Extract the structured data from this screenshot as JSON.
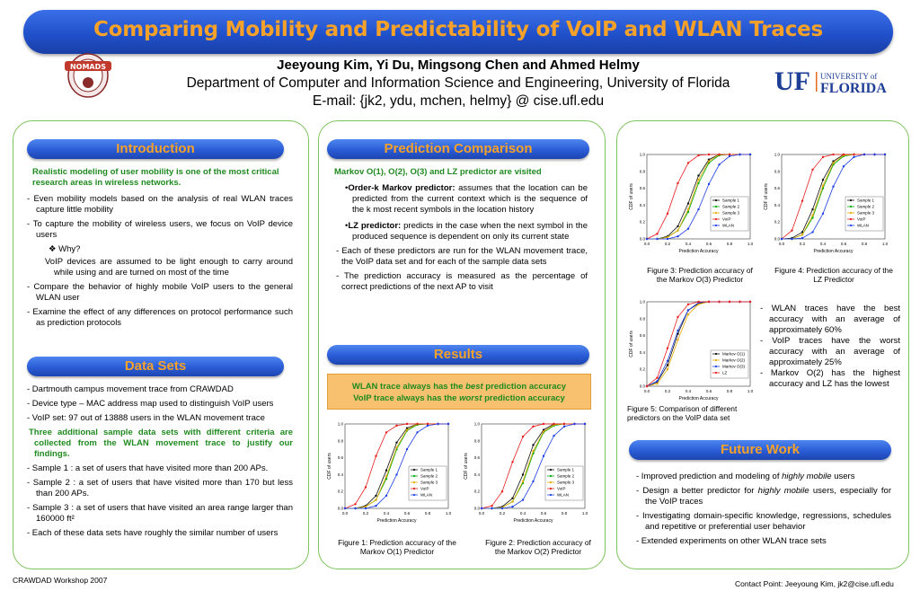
{
  "title": "Comparing Mobility and Predictability of VoIP and WLAN Traces",
  "authors": "Jeeyoung Kim, Yi Du, Mingsong Chen and Ahmed Helmy",
  "department": "Department of Computer and Information Science and Engineering, University of Florida",
  "email": "E-mail: {jk2, ydu, mchen, helmy} @ cise.ufl.edu",
  "logos": {
    "left_text": "NOMADS",
    "uf_letters": "UF",
    "uf_line1": "UNIVERSITY of",
    "uf_line2": "FLORIDA"
  },
  "introduction": {
    "heading": "Introduction",
    "lead": "Realistic modeling of user mobility is one of the most critical research areas in wireless networks.",
    "items": [
      "- Even mobility models based on the analysis of real WLAN traces capture little mobility",
      "-  To capture the mobility of wireless users, we focus on VoIP device users"
    ],
    "why": "❖ Why?",
    "why_text": "VoIP devices are assumed to be light enough to carry around while using and are turned on most of the time",
    "items2": [
      "-  Compare the behavior of highly mobile VoIP users to the general WLAN user",
      "-  Examine the effect of any differences on protocol performance such as prediction protocols"
    ]
  },
  "data_sets": {
    "heading": "Data Sets",
    "items": [
      "-  Dartmouth campus movement trace from CRAWDAD",
      "-  Device type – MAC address map used to distinguish VoIP users",
      "-  VoIP set: 97 out of 13888 users in the WLAN movement trace"
    ],
    "lead": "Three additional sample data sets with different criteria are collected from the WLAN movement trace to justify our findings.",
    "items2": [
      "-  Sample 1 : a set of users that have visited more than 200 APs.",
      "-  Sample 2 : a set of users that have visited more than 170 but less than 200 APs.",
      "-  Sample 3 : a set of users that have visited an area range larger than 160000 ft²",
      "-  Each of these data sets have roughly the similar number of users"
    ]
  },
  "prediction": {
    "heading": "Prediction Comparison",
    "lead": "Markov O(1), O(2), O(3) and LZ predictor are visited",
    "b1_label": "Order-k Markov predictor:",
    "b1_text": " assumes that the location can be predicted from the current context which is the sequence of the k most recent symbols in the location history",
    "b2_label": "LZ predictor:",
    "b2_text": " predicts in the case when the next symbol in the produced sequence is dependent on only its current state",
    "items": [
      "- Each of these predictors are run for the WLAN movement trace, the VoIP data set and for each of the sample data sets",
      "- The prediction accuracy is measured as the percentage of correct predictions of the next AP to visit"
    ]
  },
  "results": {
    "heading": "Results",
    "line1_pre": "WLAN trace always has the ",
    "line1_em": "best",
    "line1_post": " prediction accuracy",
    "line2_pre": "VoIP trace always has the ",
    "line2_em": "worst",
    "line2_post": " prediction accuracy"
  },
  "captions": {
    "fig1": "Figure 1: Prediction accuracy of the Markov O(1) Predictor",
    "fig2": "Figure 2: Prediction accuracy of the Markov O(2) Predictor",
    "fig3": "Figure 3: Prediction accuracy of the Markov O(3) Predictor",
    "fig4": "Figure 4: Prediction accuracy of the LZ Predictor",
    "fig5": "Figure 5: Comparison of different predictors on the VoIP data set"
  },
  "findings": [
    "- WLAN traces have the best accuracy with an average of approximately 60%",
    "- VoIP traces have the worst accuracy with an average of approximately 25%",
    "- Markov O(2) has the highest accuracy and LZ has the lowest"
  ],
  "future_work": {
    "heading": "Future Work",
    "items": [
      [
        "- Improved prediction and modeling of ",
        "highly mobile",
        " users"
      ],
      [
        "- Design a better predictor for ",
        "highly mobile",
        " users, especially for the VoIP traces"
      ],
      [
        "- Investigating domain-specific knowledge, regressions, schedules and repetitive or preferential user behavior",
        "",
        ""
      ],
      [
        "-  Extended experiments on other WLAN trace sets",
        "",
        ""
      ]
    ]
  },
  "footer_left": "CRAWDAD Workshop 2007",
  "footer_right": "Contact Point: Jeeyoung Kim, jk2@cise.ufl.edu",
  "chart_data": [
    {
      "type": "line",
      "id": "fig1",
      "xlabel": "Prediction Accuracy",
      "ylabel": "CDF of users",
      "xlim": [
        0,
        1
      ],
      "ylim": [
        0,
        1
      ],
      "x": [
        0.0,
        0.1,
        0.2,
        0.3,
        0.4,
        0.5,
        0.6,
        0.7,
        0.8,
        0.9,
        1.0
      ],
      "series": [
        {
          "name": "Sample 1",
          "color": "#111111",
          "values": [
            0,
            0,
            0.03,
            0.15,
            0.45,
            0.78,
            0.95,
            1,
            1,
            1,
            1
          ]
        },
        {
          "name": "Sample 2",
          "color": "#00aa00",
          "values": [
            0,
            0,
            0.02,
            0.1,
            0.35,
            0.7,
            0.92,
            0.99,
            1,
            1,
            1
          ]
        },
        {
          "name": "Sample 3",
          "color": "#e6a800",
          "values": [
            0,
            0,
            0.02,
            0.1,
            0.38,
            0.72,
            0.93,
            1,
            1,
            1,
            1
          ]
        },
        {
          "name": "VoIP",
          "color": "#e81c1c",
          "values": [
            0,
            0.05,
            0.25,
            0.62,
            0.9,
            0.98,
            1,
            1,
            1,
            1,
            1
          ]
        },
        {
          "name": "WLAN",
          "color": "#1c3ee8",
          "values": [
            0,
            0,
            0,
            0.03,
            0.15,
            0.4,
            0.7,
            0.9,
            0.98,
            1,
            1
          ]
        }
      ]
    },
    {
      "type": "line",
      "id": "fig2",
      "xlabel": "Prediction Accuracy",
      "ylabel": "CDF of users",
      "xlim": [
        0,
        1
      ],
      "ylim": [
        0,
        1
      ],
      "x": [
        0.0,
        0.1,
        0.2,
        0.3,
        0.4,
        0.5,
        0.6,
        0.7,
        0.8,
        0.9,
        1.0
      ],
      "series": [
        {
          "name": "Sample 1",
          "color": "#111111",
          "values": [
            0,
            0,
            0.02,
            0.12,
            0.4,
            0.75,
            0.93,
            1,
            1,
            1,
            1
          ]
        },
        {
          "name": "Sample 2",
          "color": "#00aa00",
          "values": [
            0,
            0,
            0.01,
            0.08,
            0.3,
            0.65,
            0.9,
            0.98,
            1,
            1,
            1
          ]
        },
        {
          "name": "Sample 3",
          "color": "#e6a800",
          "values": [
            0,
            0,
            0.01,
            0.08,
            0.32,
            0.68,
            0.91,
            0.99,
            1,
            1,
            1
          ]
        },
        {
          "name": "VoIP",
          "color": "#e81c1c",
          "values": [
            0,
            0.03,
            0.2,
            0.55,
            0.85,
            0.97,
            1,
            1,
            1,
            1,
            1
          ]
        },
        {
          "name": "WLAN",
          "color": "#1c3ee8",
          "values": [
            0,
            0,
            0,
            0.02,
            0.1,
            0.32,
            0.62,
            0.86,
            0.97,
            1,
            1
          ]
        }
      ]
    },
    {
      "type": "line",
      "id": "fig3",
      "xlabel": "Prediction Accuracy",
      "ylabel": "CDF of users",
      "xlim": [
        0,
        1
      ],
      "ylim": [
        0,
        1
      ],
      "x": [
        0.0,
        0.1,
        0.2,
        0.3,
        0.4,
        0.5,
        0.6,
        0.7,
        0.8,
        0.9,
        1.0
      ],
      "series": [
        {
          "name": "Sample 1",
          "color": "#111111",
          "values": [
            0,
            0,
            0.03,
            0.15,
            0.42,
            0.75,
            0.94,
            1,
            1,
            1,
            1
          ]
        },
        {
          "name": "Sample 2",
          "color": "#00aa00",
          "values": [
            0,
            0,
            0.02,
            0.1,
            0.32,
            0.66,
            0.9,
            0.99,
            1,
            1,
            1
          ]
        },
        {
          "name": "Sample 3",
          "color": "#e6a800",
          "values": [
            0,
            0,
            0.02,
            0.1,
            0.35,
            0.7,
            0.92,
            1,
            1,
            1,
            1
          ]
        },
        {
          "name": "VoIP",
          "color": "#e81c1c",
          "values": [
            0,
            0.06,
            0.3,
            0.66,
            0.9,
            0.99,
            1,
            1,
            1,
            1,
            1
          ]
        },
        {
          "name": "WLAN",
          "color": "#1c3ee8",
          "values": [
            0,
            0,
            0,
            0.03,
            0.12,
            0.35,
            0.65,
            0.88,
            0.98,
            1,
            1
          ]
        }
      ]
    },
    {
      "type": "line",
      "id": "fig4",
      "xlabel": "Prediction Accuracy",
      "ylabel": "CDF of users",
      "xlim": [
        0,
        1
      ],
      "ylim": [
        0,
        1
      ],
      "x": [
        0.0,
        0.1,
        0.2,
        0.3,
        0.4,
        0.5,
        0.6,
        0.7,
        0.8,
        0.9,
        1.0
      ],
      "series": [
        {
          "name": "Sample 1",
          "color": "#111111",
          "values": [
            0,
            0.01,
            0.08,
            0.35,
            0.7,
            0.92,
            1,
            1,
            1,
            1,
            1
          ]
        },
        {
          "name": "Sample 2",
          "color": "#00aa00",
          "values": [
            0,
            0,
            0.05,
            0.25,
            0.6,
            0.88,
            0.98,
            1,
            1,
            1,
            1
          ]
        },
        {
          "name": "Sample 3",
          "color": "#e6a800",
          "values": [
            0,
            0,
            0.05,
            0.28,
            0.63,
            0.9,
            0.99,
            1,
            1,
            1,
            1
          ]
        },
        {
          "name": "VoIP",
          "color": "#e81c1c",
          "values": [
            0,
            0.1,
            0.45,
            0.82,
            0.97,
            1,
            1,
            1,
            1,
            1,
            1
          ]
        },
        {
          "name": "WLAN",
          "color": "#1c3ee8",
          "values": [
            0,
            0,
            0.01,
            0.08,
            0.3,
            0.62,
            0.86,
            0.97,
            1,
            1,
            1
          ]
        }
      ]
    },
    {
      "type": "line",
      "id": "fig5",
      "xlabel": "Prediction Accuracy",
      "ylabel": "CDF of users",
      "xlim": [
        0,
        1
      ],
      "ylim": [
        0,
        1
      ],
      "x": [
        0.0,
        0.1,
        0.2,
        0.3,
        0.4,
        0.5,
        0.6,
        0.7,
        0.8,
        0.9,
        1.0
      ],
      "series": [
        {
          "name": "Markov O(1)",
          "color": "#111111",
          "values": [
            0,
            0.05,
            0.25,
            0.62,
            0.9,
            0.98,
            1,
            1,
            1,
            1,
            1
          ]
        },
        {
          "name": "Markov O(2)",
          "color": "#e6a800",
          "values": [
            0,
            0.03,
            0.2,
            0.55,
            0.85,
            0.97,
            1,
            1,
            1,
            1,
            1
          ]
        },
        {
          "name": "Markov O(3)",
          "color": "#1c3ee8",
          "values": [
            0,
            0.06,
            0.3,
            0.66,
            0.9,
            0.99,
            1,
            1,
            1,
            1,
            1
          ]
        },
        {
          "name": "LZ",
          "color": "#e81c1c",
          "values": [
            0,
            0.1,
            0.45,
            0.82,
            0.97,
            1,
            1,
            1,
            1,
            1,
            1
          ]
        }
      ]
    }
  ]
}
